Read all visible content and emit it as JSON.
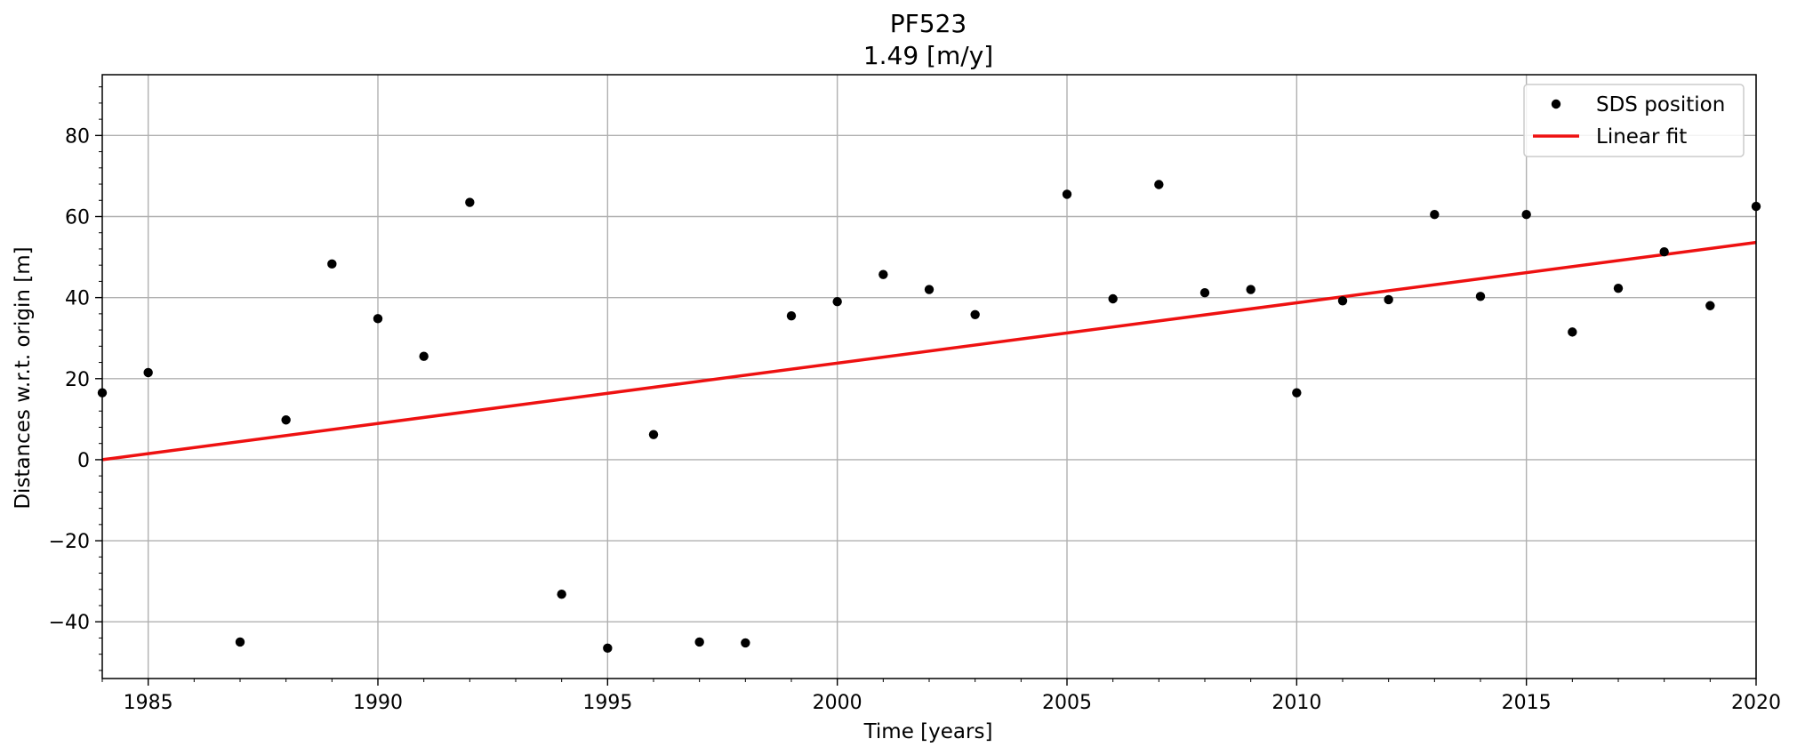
{
  "chart_data": {
    "type": "scatter",
    "title": "PF523",
    "subtitle": "1.49 [m/y]",
    "xlabel": "Time [years]",
    "ylabel": "Distances w.r.t. origin [m]",
    "xlim": [
      1984,
      2020
    ],
    "ylim": [
      -54,
      95
    ],
    "xticks": [
      1985,
      1990,
      1995,
      2000,
      2005,
      2010,
      2015,
      2020
    ],
    "yticks": [
      -40,
      -20,
      0,
      20,
      40,
      60,
      80
    ],
    "ytick_labels": [
      "−40",
      "−20",
      "0",
      "20",
      "40",
      "60",
      "80"
    ],
    "grid": true,
    "legend_position": "top-right",
    "colors": {
      "points": "#000000",
      "fit": "#ee1111",
      "grid": "#b0b0b0"
    },
    "series": [
      {
        "name": "SDS position",
        "kind": "points",
        "x": [
          1984,
          1985,
          1987,
          1988,
          1989,
          1990,
          1991,
          1992,
          1994,
          1995,
          1996,
          1997,
          1998,
          1999,
          2000,
          2001,
          2002,
          2003,
          2005,
          2006,
          2007,
          2008,
          2009,
          2010,
          2011,
          2012,
          2013,
          2014,
          2015,
          2016,
          2017,
          2018,
          2019,
          2020
        ],
        "y": [
          16.5,
          21.5,
          -45.0,
          9.8,
          48.3,
          34.8,
          25.5,
          63.5,
          -33.2,
          -46.5,
          6.2,
          -45.0,
          -45.2,
          35.5,
          39.0,
          45.7,
          42.0,
          35.8,
          65.5,
          39.7,
          67.9,
          41.2,
          42.0,
          16.5,
          39.2,
          39.5,
          60.5,
          40.3,
          60.5,
          31.5,
          42.3,
          51.3,
          38.0,
          62.5
        ]
      },
      {
        "name": "Linear fit",
        "kind": "line",
        "x": [
          1984,
          2020
        ],
        "y": [
          0.0,
          53.6
        ]
      }
    ]
  }
}
